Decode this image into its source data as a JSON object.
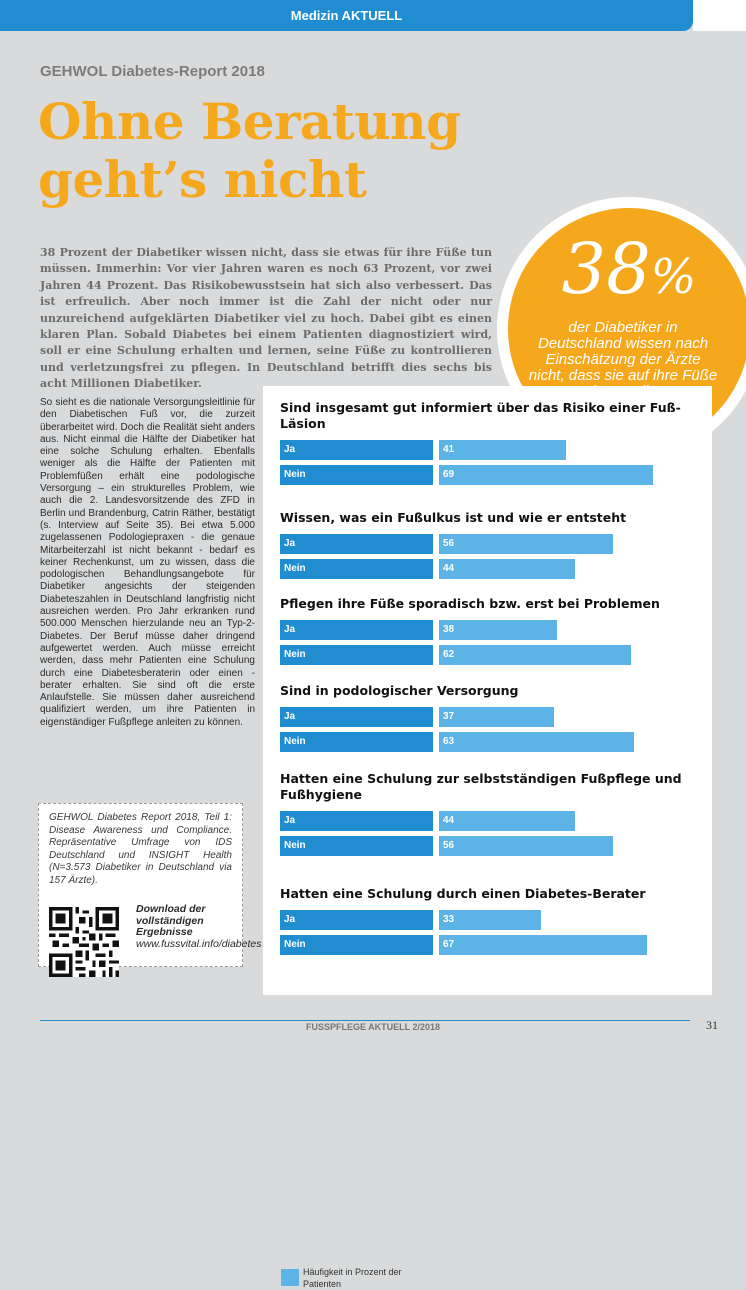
{
  "header": {
    "section": "Medizin AKTUELL"
  },
  "kicker": "GEHWOL Diabetes-Report 2018",
  "headline": {
    "line1": "Ohne Beratung",
    "line2": "geht’s nicht"
  },
  "lead": "38 Prozent der Diabetiker wissen nicht, dass sie etwas für ihre Füße tun müssen. Immerhin: Vor vier Jahren waren es noch 63 Prozent, vor zwei Jahren 44 Prozent. Das Risikobewusstsein hat sich also verbessert. Das ist erfreulich. Aber noch immer ist die Zahl der nicht oder nur unzureichend aufgeklärten Diabetiker viel zu hoch. Dabei gibt es einen klaren Plan. Sobald Diabetes bei einem Patienten diagnostiziert wird, soll er eine Schulung erhalten und lernen, seine Füße zu kontrollieren und verletzungsfrei zu pflegen. In Deutschland betrifft dies sechs bis acht Millionen Diabetiker.",
  "callout": {
    "number": "38",
    "unit": "%",
    "text": "der Diabetiker in Deutschland wissen nach Einschätzung der Ärzte nicht, dass sie auf ihre Füße achten sollen!"
  },
  "body": "So sieht es die nationale Versorgungsleitlinie für den Diabetischen Fuß vor, die zurzeit überarbeitet wird. Doch die Realität sieht anders aus. Nicht einmal die Hälfte der Diabetiker hat eine solche Schulung erhalten. Ebenfalls weniger als die Hälfte der Patienten mit Problemfüßen erhält eine podologische Versorgung – ein strukturelles Problem, wie auch die 2. Landesvorsitzende des ZFD in Berlin und Brandenburg, Catrin Räther, bestätigt (s. Interview auf Seite 35). Bei etwa 5.000 zugelassenen Podologiepraxen - die genaue Mitarbeiterzahl ist nicht bekannt - bedarf es keiner Rechenkunst, um zu wissen, dass die podologischen Behandlungsangebote für Diabetiker angesichts der steigenden Diabeteszahlen in Deutschland langfristig nicht ausreichen werden. Pro Jahr erkranken rund 500.000 Menschen hierzulande neu an Typ-2-Diabetes. Der Beruf müsse daher dringend aufgewertet werden. Auch müsse erreicht werden, dass mehr Patienten eine Schulung durch eine Diabetesberaterin oder einen -berater erhalten. Sie sind oft die erste Anlaufstelle. Sie müssen daher ausreichend qualifiziert werden, um ihre Patienten in eigenständiger Fußpflege anleiten zu können.",
  "source": {
    "text": "GEHWOL Diabetes Report 2018, Teil 1: Disease Awareness und Compliance. Repräsentative Umfrage von IDS Deutschland und INSIGHT Health (N=3.573 Diabetiker in Deutschland via 157 Ärzte).",
    "download_title": "Download der vollständigen Ergebnisse",
    "download_url": "www.fussvital.info/diabetes"
  },
  "chart_data": {
    "type": "bar",
    "orientation": "horizontal",
    "unit": "%",
    "xlim": [
      0,
      100
    ],
    "groups": [
      {
        "question": "Sind insgesamt gut informiert über das Risiko einer Fuß-Läsion",
        "bars": [
          {
            "label": "Ja",
            "value": 41
          },
          {
            "label": "Nein",
            "value": 69
          }
        ]
      },
      {
        "question": "Wissen, was ein Fußulkus ist und wie er entsteht",
        "bars": [
          {
            "label": "Ja",
            "value": 56
          },
          {
            "label": "Nein",
            "value": 44
          }
        ]
      },
      {
        "question": "Pflegen ihre Füße sporadisch bzw. erst bei Problemen",
        "bars": [
          {
            "label": "Ja",
            "value": 38
          },
          {
            "label": "Nein",
            "value": 62
          }
        ]
      },
      {
        "question": "Sind in podologischer Versorgung",
        "bars": [
          {
            "label": "Ja",
            "value": 37
          },
          {
            "label": "Nein",
            "value": 63
          }
        ]
      },
      {
        "question": "Hatten eine Schulung zur selbstständigen Fußpflege und Fußhygiene",
        "bars": [
          {
            "label": "Ja",
            "value": 44
          },
          {
            "label": "Nein",
            "value": 56
          }
        ]
      },
      {
        "question": "Hatten eine Schulung durch einen Diabetes-Berater",
        "bars": [
          {
            "label": "Ja",
            "value": 33
          },
          {
            "label": "Nein",
            "value": 67
          }
        ]
      }
    ],
    "legend": "Häufigkeit in Prozent der Patienten",
    "colors": {
      "label_bg": "#1f8dd0",
      "bar": "#5bb4e5"
    }
  },
  "footer": {
    "magazine": "FUSSPFLEGE AKTUELL 2/2018",
    "page": "31"
  }
}
